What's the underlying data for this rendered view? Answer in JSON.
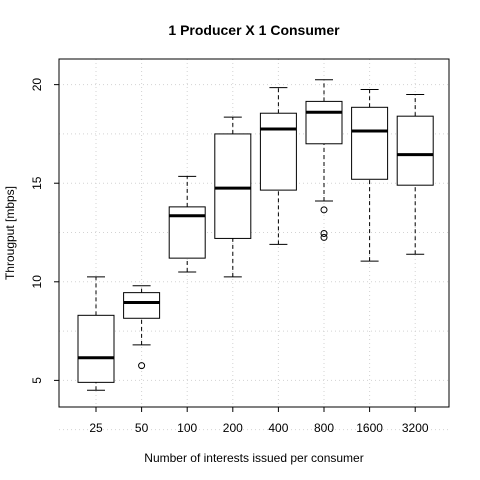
{
  "chart_data": {
    "type": "box",
    "title": "1 Producer X 1 Consumer",
    "xlabel": "Number of interests issued per consumer",
    "ylabel": "Througput [mbps]",
    "ylim": [
      3.65,
      21.3
    ],
    "yticks": [
      5,
      10,
      15,
      20
    ],
    "grid": true,
    "categories": [
      "25",
      "50",
      "100",
      "200",
      "400",
      "800",
      "1600",
      "3200"
    ],
    "boxes": [
      {
        "category": "25",
        "whisker_low": 4.5,
        "q1": 4.9,
        "median": 6.15,
        "q3": 8.3,
        "whisker_high": 10.25,
        "outliers": []
      },
      {
        "category": "50",
        "whisker_low": 6.8,
        "q1": 8.15,
        "median": 8.95,
        "q3": 9.45,
        "whisker_high": 9.8,
        "outliers": [
          5.75
        ]
      },
      {
        "category": "100",
        "whisker_low": 10.5,
        "q1": 11.2,
        "median": 13.35,
        "q3": 13.8,
        "whisker_high": 15.35,
        "outliers": []
      },
      {
        "category": "200",
        "whisker_low": 10.25,
        "q1": 12.2,
        "median": 14.75,
        "q3": 17.5,
        "whisker_high": 18.35,
        "outliers": []
      },
      {
        "category": "400",
        "whisker_low": 11.9,
        "q1": 14.65,
        "median": 17.75,
        "q3": 18.55,
        "whisker_high": 19.85,
        "outliers": []
      },
      {
        "category": "800",
        "whisker_low": 14.1,
        "q1": 17.0,
        "median": 18.6,
        "q3": 19.15,
        "whisker_high": 20.25,
        "outliers": [
          13.65,
          12.45,
          12.25
        ]
      },
      {
        "category": "1600",
        "whisker_low": 11.05,
        "q1": 15.2,
        "median": 17.65,
        "q3": 18.85,
        "whisker_high": 19.75,
        "outliers": []
      },
      {
        "category": "3200",
        "whisker_low": 11.4,
        "q1": 14.9,
        "median": 16.45,
        "q3": 18.4,
        "whisker_high": 19.5,
        "outliers": []
      }
    ]
  }
}
